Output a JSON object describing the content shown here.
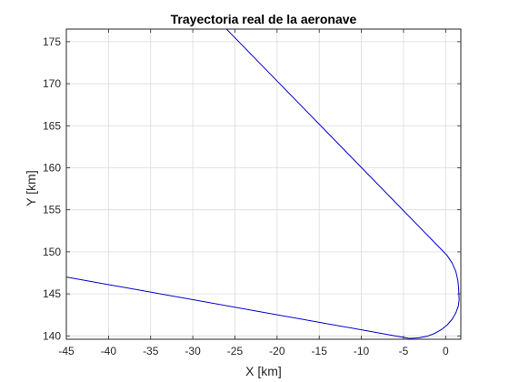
{
  "chart_data": {
    "type": "line",
    "title": "Trayectoria real de la aeronave",
    "xlabel": "X [km]",
    "ylabel": "Y [km]",
    "xlim": [
      -45,
      1.8
    ],
    "ylim": [
      139.6,
      176.5
    ],
    "xticks": [
      -45,
      -40,
      -35,
      -30,
      -25,
      -20,
      -15,
      -10,
      -5,
      0
    ],
    "yticks": [
      140,
      145,
      150,
      155,
      160,
      165,
      170,
      175
    ],
    "grid": true,
    "legend": "none",
    "colors": {
      "line": "#0000cc",
      "grid": "#dcdcdc",
      "axis": "#262626"
    },
    "series": [
      {
        "points": [
          [
            -45.0,
            147.0
          ],
          [
            -4.3,
            139.7
          ],
          [
            -3.2,
            139.76
          ],
          [
            -2.2,
            139.96
          ],
          [
            -1.3,
            140.29
          ],
          [
            -0.5,
            140.75
          ],
          [
            0.2,
            141.32
          ],
          [
            0.77,
            141.98
          ],
          [
            1.2,
            142.72
          ],
          [
            1.49,
            143.5
          ],
          [
            1.6,
            144.3
          ],
          [
            1.55,
            145.5
          ],
          [
            1.45,
            146.6
          ],
          [
            1.2,
            147.7
          ],
          [
            0.75,
            148.7
          ],
          [
            0.15,
            149.6
          ],
          [
            -26.0,
            176.5
          ]
        ]
      }
    ]
  }
}
